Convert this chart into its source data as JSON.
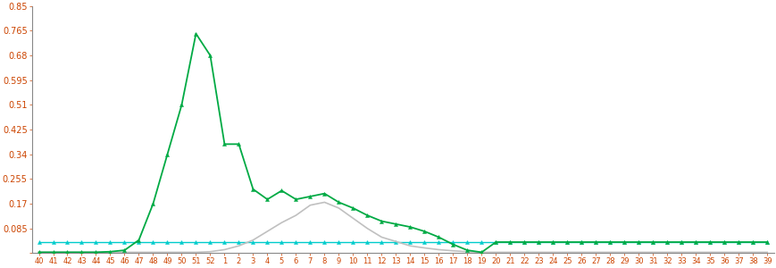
{
  "x_labels": [
    "40",
    "41",
    "42",
    "43",
    "44",
    "45",
    "46",
    "47",
    "48",
    "49",
    "50",
    "51",
    "52",
    "1",
    "2",
    "3",
    "4",
    "5",
    "6",
    "7",
    "8",
    "9",
    "10",
    "11",
    "12",
    "13",
    "14",
    "15",
    "16",
    "17",
    "18",
    "19",
    "20",
    "21",
    "22",
    "23",
    "24",
    "25",
    "26",
    "27",
    "28",
    "29",
    "30",
    "31",
    "32",
    "33",
    "34",
    "35",
    "36",
    "37",
    "38",
    "39"
  ],
  "green_values": [
    0.003,
    0.003,
    0.003,
    0.003,
    0.003,
    0.005,
    0.01,
    0.045,
    0.17,
    0.34,
    0.51,
    0.755,
    0.68,
    0.375,
    0.375,
    0.22,
    0.185,
    0.215,
    0.185,
    0.195,
    0.205,
    0.175,
    0.155,
    0.13,
    0.11,
    0.1,
    0.09,
    0.075,
    0.055,
    0.03,
    0.01,
    0.003,
    0.038,
    0.038,
    0.038,
    0.038,
    0.038,
    0.038,
    0.038,
    0.038,
    0.038,
    0.038,
    0.038,
    0.038,
    0.038,
    0.038,
    0.038,
    0.038,
    0.038,
    0.038,
    0.038,
    0.038
  ],
  "gray_values": [
    0.003,
    0.003,
    0.003,
    0.003,
    0.003,
    0.003,
    0.003,
    0.003,
    0.003,
    0.003,
    0.003,
    0.003,
    0.005,
    0.012,
    0.025,
    0.045,
    0.075,
    0.105,
    0.13,
    0.165,
    0.175,
    0.155,
    0.12,
    0.085,
    0.055,
    0.04,
    0.025,
    0.018,
    0.012,
    0.008,
    0.005,
    0.003,
    0.003,
    0.003,
    0.003,
    0.003,
    0.003,
    0.003,
    0.003,
    0.003,
    0.003,
    0.003,
    0.003,
    0.003,
    0.003,
    0.003,
    0.003,
    0.003,
    0.003,
    0.003,
    0.003,
    0.003
  ],
  "cyan_values": [
    0.038,
    0.038,
    0.038,
    0.038,
    0.038,
    0.038,
    0.038,
    0.038,
    0.038,
    0.038,
    0.038,
    0.038,
    0.038,
    0.038,
    0.038,
    0.038,
    0.038,
    0.038,
    0.038,
    0.038,
    0.038,
    0.038,
    0.038,
    0.038,
    0.038,
    0.038,
    0.038,
    0.038,
    0.038,
    0.038,
    0.038,
    0.038,
    0.038,
    0.038,
    0.038,
    0.038,
    0.038,
    0.038,
    0.038,
    0.038,
    0.038,
    0.038,
    0.038,
    0.038,
    0.038,
    0.038,
    0.038,
    0.038,
    0.038,
    0.038,
    0.038,
    0.038
  ],
  "green_color": "#00aa44",
  "gray_color": "#c0c0c0",
  "cyan_color": "#00cccc",
  "ylim": [
    0,
    0.85
  ],
  "yticks": [
    0,
    0.085,
    0.17,
    0.255,
    0.34,
    0.425,
    0.51,
    0.595,
    0.68,
    0.765,
    0.85
  ],
  "ytick_labels": [
    "",
    "0.085",
    "0.17",
    "0.255",
    "0.34",
    "0.425",
    "0.51",
    "0.595",
    "0.68",
    "0.765",
    "0.85"
  ],
  "background_color": "#ffffff",
  "tick_color": "#cc4400",
  "spine_color": "#888888"
}
